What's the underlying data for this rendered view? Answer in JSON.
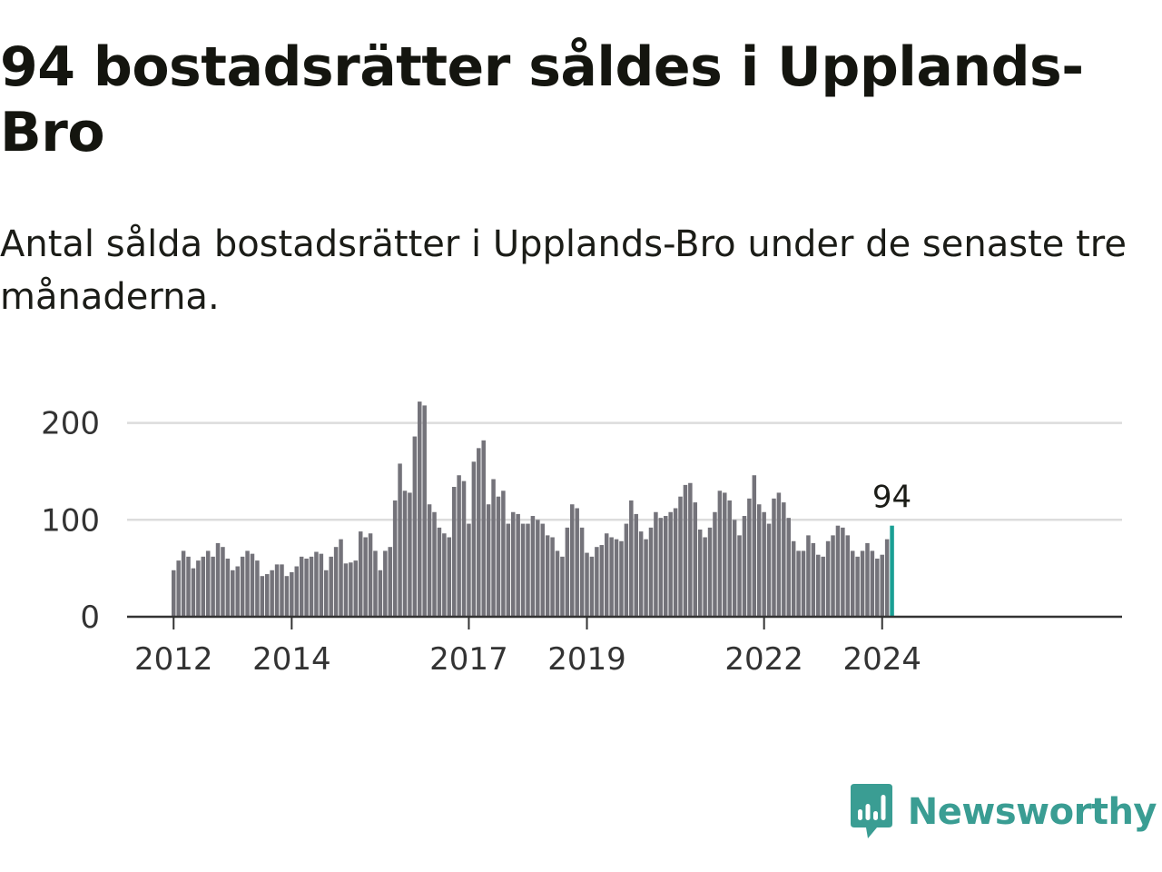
{
  "header": {
    "title": "94 bostadsrätter såldes i Upplands-Bro",
    "subtitle": "Antal sålda bostadsrätter i Upplands-Bro under de senaste tre månaderna."
  },
  "brand": {
    "name": "Newsworthy",
    "icon": "newsworthy-logo-icon",
    "color": "#3a9d93"
  },
  "colors": {
    "bar": "#74737a",
    "highlight": "#1a9f94",
    "grid": "#dcdcdc",
    "axis": "#333333"
  },
  "chart_data": {
    "type": "bar",
    "title": "94 bostadsrätter såldes i Upplands-Bro",
    "subtitle": "Antal sålda bostadsrätter i Upplands-Bro under de senaste tre månaderna.",
    "x_unit": "month",
    "x_start": "2012-01",
    "x_ticks": [
      "2012",
      "2014",
      "2017",
      "2019",
      "2022",
      "2024"
    ],
    "y_ticks": [
      0,
      100,
      200
    ],
    "ylim": [
      0,
      225
    ],
    "grid": true,
    "highlight_last": true,
    "highlight_label": "94",
    "values": [
      48,
      58,
      68,
      62,
      50,
      58,
      62,
      68,
      62,
      76,
      72,
      60,
      48,
      52,
      62,
      68,
      65,
      58,
      42,
      44,
      48,
      54,
      54,
      42,
      46,
      52,
      62,
      60,
      62,
      67,
      65,
      48,
      62,
      72,
      80,
      55,
      56,
      58,
      88,
      82,
      86,
      68,
      48,
      68,
      72,
      120,
      158,
      130,
      128,
      186,
      222,
      218,
      116,
      108,
      92,
      86,
      82,
      134,
      146,
      140,
      96,
      160,
      174,
      182,
      116,
      142,
      124,
      130,
      96,
      108,
      106,
      96,
      96,
      104,
      100,
      96,
      84,
      82,
      68,
      62,
      92,
      116,
      112,
      92,
      66,
      62,
      72,
      74,
      86,
      82,
      80,
      78,
      96,
      120,
      106,
      88,
      80,
      92,
      108,
      102,
      104,
      108,
      112,
      124,
      136,
      138,
      118,
      90,
      82,
      92,
      108,
      130,
      128,
      120,
      100,
      84,
      104,
      122,
      146,
      116,
      108,
      96,
      122,
      128,
      118,
      102,
      78,
      68,
      68,
      84,
      76,
      64,
      62,
      78,
      84,
      94,
      92,
      84,
      68,
      62,
      68,
      76,
      68,
      60,
      64,
      80,
      94
    ]
  }
}
